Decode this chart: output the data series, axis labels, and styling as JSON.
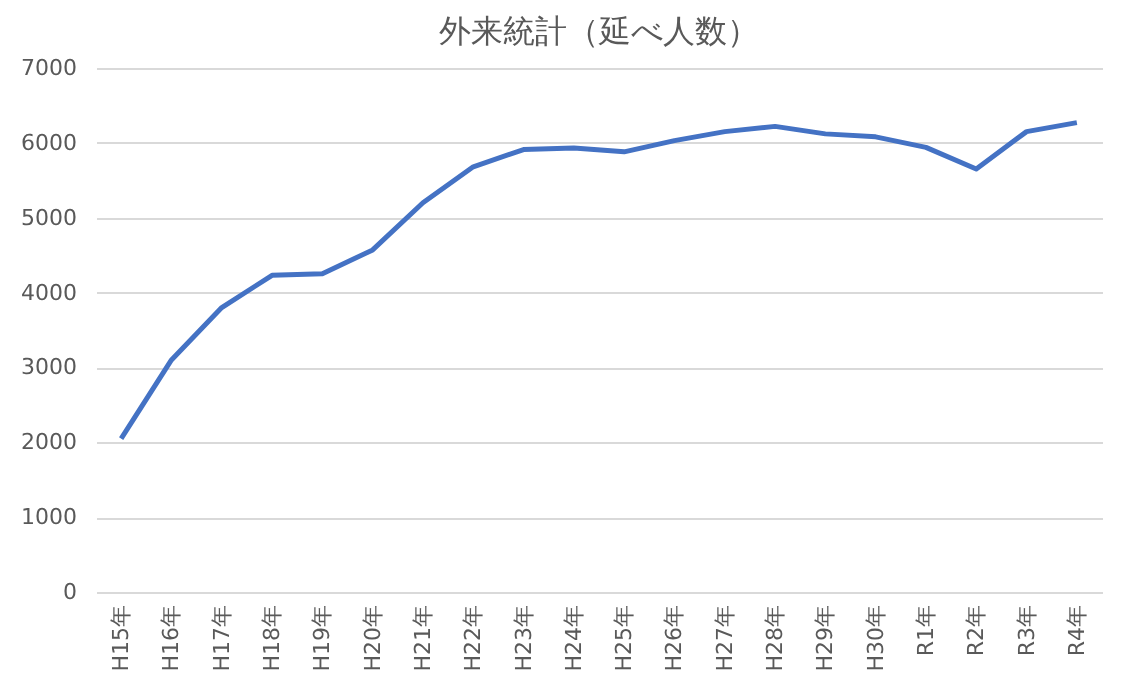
{
  "chart_data": {
    "type": "line",
    "title": "外来統計（延べ人数）",
    "categories": [
      "H15年",
      "H16年",
      "H17年",
      "H18年",
      "H19年",
      "H20年",
      "H21年",
      "H22年",
      "H23年",
      "H24年",
      "H25年",
      "H26年",
      "H27年",
      "H28年",
      "H29年",
      "H30年",
      "R1年",
      "R2年",
      "R3年",
      "R4年"
    ],
    "series": [
      {
        "color": "#4472c4",
        "values": [
          2050,
          3100,
          3800,
          4230,
          4250,
          4570,
          5200,
          5680,
          5910,
          5930,
          5880,
          6030,
          6150,
          6220,
          6120,
          6080,
          5940,
          5650,
          6150,
          6270
        ]
      }
    ],
    "ylim": [
      0,
      7000
    ],
    "yticks": [
      0,
      1000,
      2000,
      3000,
      4000,
      5000,
      6000,
      7000
    ],
    "grid": "y",
    "marker": "none",
    "line_style": "solid"
  }
}
